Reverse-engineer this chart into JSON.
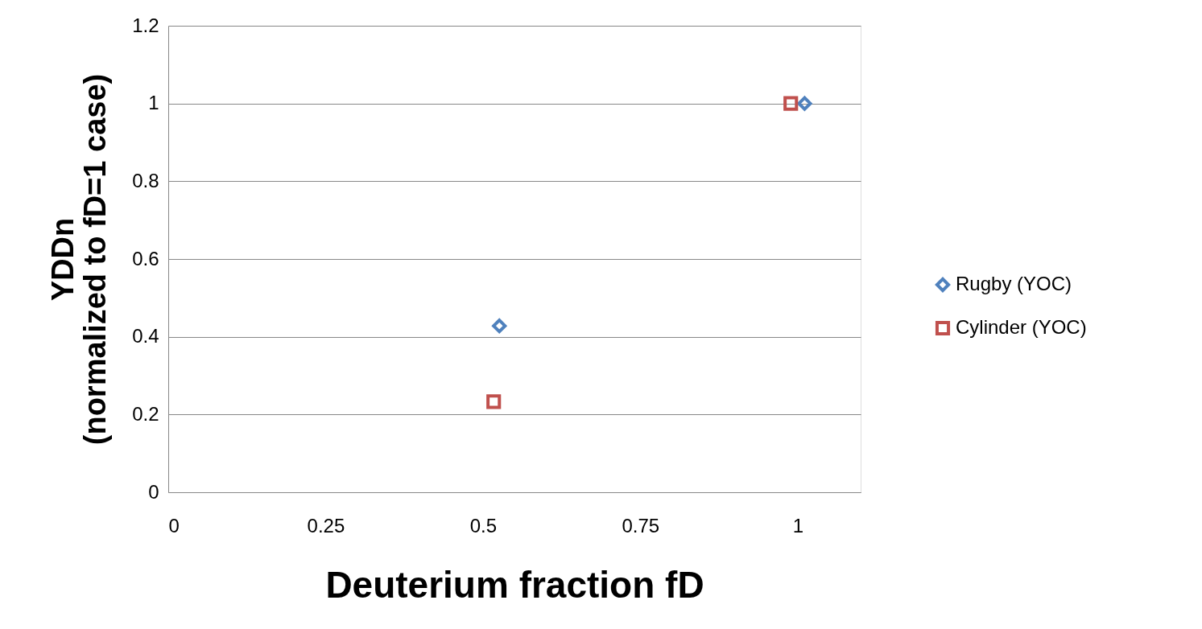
{
  "chart_data": {
    "type": "scatter",
    "xlabel": "Deuterium fraction fD",
    "ylabel": "YDDn\n(normalized to fD=1 case)",
    "xlim": [
      0,
      1.1
    ],
    "xticks": [
      0,
      0.25,
      0.5,
      0.75,
      1
    ],
    "ylim": [
      0,
      1.2
    ],
    "yticks": [
      0,
      0.2,
      0.4,
      0.6,
      0.8,
      1,
      1.2
    ],
    "grid": "y",
    "legend": "right",
    "series": [
      {
        "name": "Rugby (YOC)",
        "color": "#4f81bd",
        "marker": "diamond",
        "x": [
          0.526,
          1.011
        ],
        "values": [
          0.428,
          1.0
        ]
      },
      {
        "name": "Cylinder (YOC)",
        "color": "#c0504d",
        "marker": "square",
        "x": [
          0.517,
          0.989
        ],
        "values": [
          0.233,
          1.0
        ]
      }
    ]
  }
}
